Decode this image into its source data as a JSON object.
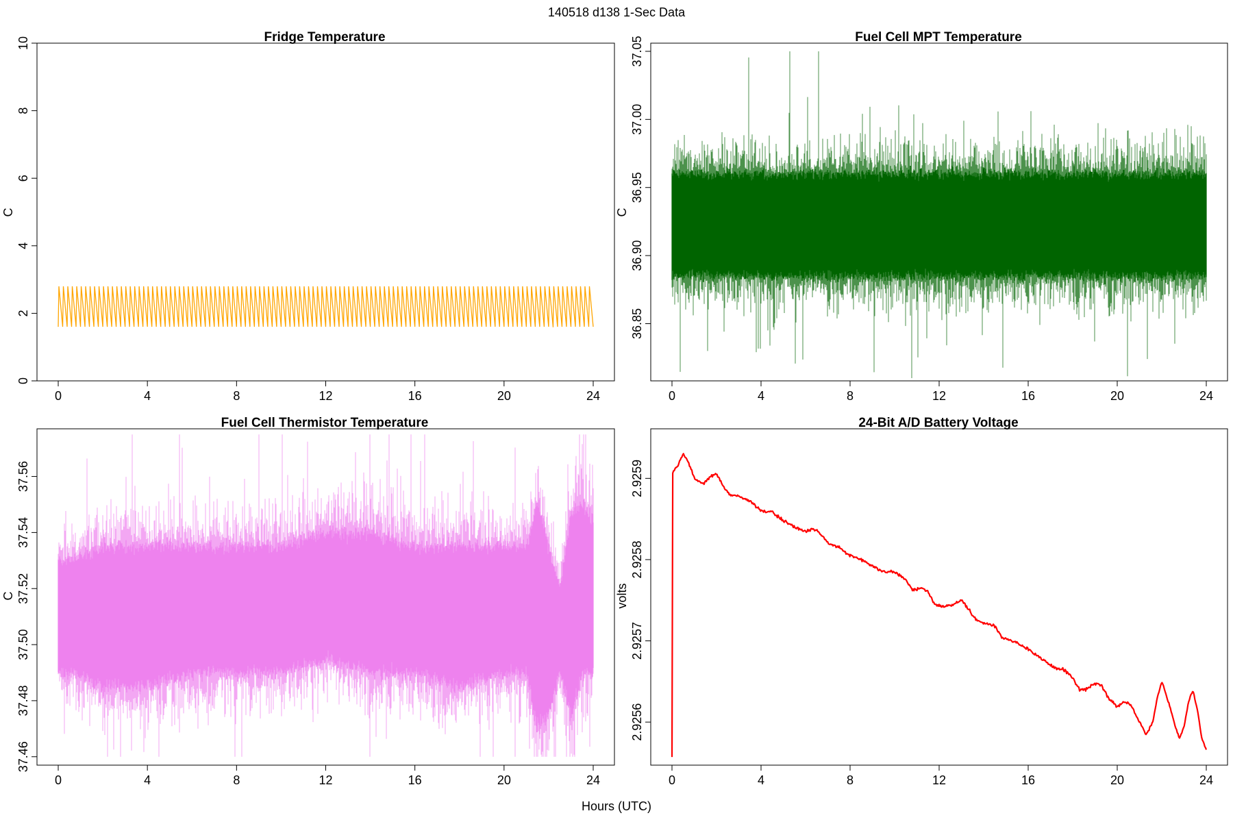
{
  "figure": {
    "title": "140518   d138   1-Sec Data",
    "xlabel": "Hours (UTC)"
  },
  "chart_data": [
    {
      "type": "line",
      "title": "Fridge Temperature",
      "xlabel": "",
      "ylabel": "C",
      "xlim": [
        0,
        24
      ],
      "ylim": [
        0,
        10
      ],
      "xticks": [
        0,
        4,
        8,
        12,
        16,
        20,
        24
      ],
      "xtick_labels": [
        "0",
        "4",
        "8",
        "12",
        "16",
        "20",
        "24"
      ],
      "yticks": [
        0,
        2,
        4,
        6,
        8,
        10
      ],
      "ytick_labels": [
        "0",
        "2",
        "4",
        "6",
        "8",
        "10"
      ],
      "color": "#ffa500",
      "series": [
        {
          "name": "fridge",
          "pattern": "sawtooth cycle, ~0.2 h period",
          "min": 1.6,
          "max": 2.8,
          "cycles": 120
        }
      ]
    },
    {
      "type": "line",
      "title": "Fuel Cell MPT Temperature",
      "xlabel": "",
      "ylabel": "C",
      "xlim": [
        0,
        24
      ],
      "ylim": [
        36.808,
        37.056
      ],
      "xticks": [
        0,
        4,
        8,
        12,
        16,
        20,
        24
      ],
      "xtick_labels": [
        "0",
        "4",
        "8",
        "12",
        "16",
        "20",
        "24"
      ],
      "yticks": [
        36.85,
        36.9,
        36.95,
        37.0,
        37.05
      ],
      "ytick_labels": [
        "36.85",
        "36.90",
        "36.95",
        "37.00",
        "37.05"
      ],
      "color": "#006400",
      "series": [
        {
          "name": "mpt",
          "band_low": 36.885,
          "band_high": 36.96,
          "min": 36.81,
          "max": 37.05,
          "mean": 36.92
        }
      ]
    },
    {
      "type": "line",
      "title": "Fuel Cell Thermistor Temperature",
      "xlabel": "",
      "ylabel": "C",
      "xlim": [
        0,
        24
      ],
      "ylim": [
        37.457,
        37.577
      ],
      "xticks": [
        0,
        4,
        8,
        12,
        16,
        20,
        24
      ],
      "xtick_labels": [
        "0",
        "4",
        "8",
        "12",
        "16",
        "20",
        "24"
      ],
      "yticks": [
        37.46,
        37.48,
        37.5,
        37.52,
        37.54,
        37.56
      ],
      "ytick_labels": [
        "37.46",
        "37.48",
        "37.50",
        "37.52",
        "37.54",
        "37.56"
      ],
      "color": "#ee82ee",
      "series": [
        {
          "name": "thermistor",
          "envelope_x": [
            0,
            0.5,
            2,
            4,
            6,
            8,
            10,
            12,
            14,
            16,
            18,
            20,
            21,
            21.5,
            22,
            22.5,
            23,
            23.5,
            24
          ],
          "envelope_low": [
            37.49,
            37.49,
            37.485,
            37.485,
            37.49,
            37.49,
            37.49,
            37.495,
            37.49,
            37.49,
            37.485,
            37.49,
            37.49,
            37.47,
            37.475,
            37.49,
            37.475,
            37.49,
            37.49
          ],
          "envelope_high": [
            37.53,
            37.53,
            37.535,
            37.535,
            37.535,
            37.535,
            37.535,
            37.54,
            37.54,
            37.535,
            37.535,
            37.535,
            37.535,
            37.55,
            37.535,
            37.52,
            37.545,
            37.55,
            37.545
          ],
          "min": 37.46,
          "max": 37.575
        }
      ]
    },
    {
      "type": "line",
      "title": "24-Bit A/D Battery Voltage",
      "xlabel": "",
      "ylabel": "volts",
      "xlim": [
        0,
        24
      ],
      "ylim": [
        2.925547,
        2.925961
      ],
      "xticks": [
        0,
        4,
        8,
        12,
        16,
        20,
        24
      ],
      "xtick_labels": [
        "0",
        "4",
        "8",
        "12",
        "16",
        "20",
        "24"
      ],
      "yticks": [
        2.9256,
        2.9257,
        2.9258,
        2.9259
      ],
      "ytick_labels": [
        "2.9256",
        "2.9257",
        "2.9258",
        "2.9259"
      ],
      "color": "#ff0000",
      "series": [
        {
          "name": "battery",
          "x": [
            0,
            0.02,
            0.04,
            0.3,
            0.5,
            0.7,
            1.0,
            1.4,
            1.7,
            2.0,
            2.3,
            2.6,
            3.0,
            3.5,
            4.0,
            4.5,
            5.0,
            5.5,
            6.0,
            6.3,
            6.6,
            7.0,
            7.5,
            8.0,
            8.5,
            9.0,
            9.5,
            10.0,
            10.5,
            10.8,
            11.2,
            11.5,
            11.8,
            12.2,
            12.6,
            13.0,
            13.3,
            13.7,
            14.0,
            14.5,
            14.8,
            15.2,
            15.7,
            16.0,
            16.5,
            17.0,
            17.3,
            17.6,
            18.0,
            18.3,
            18.6,
            19.0,
            19.3,
            19.6,
            20.0,
            20.3,
            20.6,
            21.0,
            21.3,
            21.6,
            21.8,
            22.0,
            22.3,
            22.6,
            22.8,
            23.0,
            23.2,
            23.4,
            23.6,
            23.8,
            24.0
          ],
          "y": [
            2.925557,
            2.925905,
            2.925907,
            2.925918,
            2.92593,
            2.925922,
            2.9259,
            2.925893,
            2.925902,
            2.925906,
            2.92589,
            2.92588,
            2.925878,
            2.925872,
            2.92586,
            2.925858,
            2.925848,
            2.92584,
            2.925835,
            2.925838,
            2.925834,
            2.92582,
            2.925815,
            2.925805,
            2.9258,
            2.925792,
            2.925785,
            2.925785,
            2.925775,
            2.925762,
            2.925765,
            2.92576,
            2.925745,
            2.925742,
            2.925745,
            2.92575,
            2.92574,
            2.925725,
            2.925722,
            2.925718,
            2.925705,
            2.9257,
            2.925695,
            2.92569,
            2.92568,
            2.92567,
            2.925665,
            2.925665,
            2.925655,
            2.92564,
            2.92564,
            2.925648,
            2.925645,
            2.92563,
            2.925618,
            2.925625,
            2.925622,
            2.9256,
            2.925585,
            2.9256,
            2.92563,
            2.92565,
            2.925625,
            2.925595,
            2.92558,
            2.925595,
            2.925625,
            2.92564,
            2.925615,
            2.92558,
            2.925567
          ]
        }
      ]
    }
  ]
}
